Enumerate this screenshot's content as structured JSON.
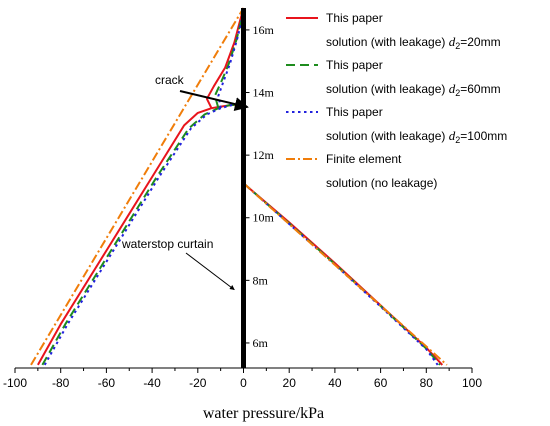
{
  "chart_data": {
    "type": "line",
    "xlabel": "water pressure/kPa",
    "ylabel": "",
    "xlim": [
      -100,
      100
    ],
    "ylim": [
      5.2,
      16.7
    ],
    "x_ticks": [
      -100,
      -80,
      -60,
      -40,
      -20,
      0,
      20,
      40,
      60,
      80,
      100
    ],
    "depth_labels": [
      "16m",
      "14m",
      "12m",
      "10m",
      "8m",
      "6m"
    ],
    "depth_values": [
      16,
      14,
      12,
      10,
      8,
      6
    ],
    "colors": {
      "d20": "#e8141c",
      "d60": "#1e8c1e",
      "d100": "#2222dd",
      "fem": "#f07d0a",
      "wall": "#000000"
    },
    "series": [
      {
        "name_line1": "This paper",
        "name_line2_prefix": "solution (with leakage) ",
        "name_var": "d",
        "name_sub": "2",
        "name_suffix": "=20mm",
        "color_key": "d20",
        "style": "solid",
        "left": [
          [
            -90,
            5.3
          ],
          [
            -80,
            6.6
          ],
          [
            -60,
            8.95
          ],
          [
            -40,
            11.3
          ],
          [
            -26,
            12.95
          ],
          [
            -20,
            13.35
          ],
          [
            -14,
            13.5
          ],
          [
            -10,
            13.55
          ],
          [
            -5,
            13.6
          ],
          [
            0,
            13.6
          ]
        ],
        "notch": [
          [
            -14,
            13.5
          ],
          [
            -16,
            13.8
          ],
          [
            -13,
            14.2
          ],
          [
            -8,
            14.8
          ],
          [
            -4,
            15.6
          ],
          [
            -1.5,
            16.3
          ],
          [
            0,
            16.7
          ]
        ],
        "right": [
          [
            0,
            11.1
          ],
          [
            20,
            9.85
          ],
          [
            40,
            8.55
          ],
          [
            60,
            7.2
          ],
          [
            80,
            5.85
          ],
          [
            87,
            5.3
          ]
        ]
      },
      {
        "name_line1": "This paper",
        "name_line2_prefix": "solution (with leakage) ",
        "name_var": "d",
        "name_sub": "2",
        "name_suffix": "=60mm",
        "color_key": "d60",
        "style": "dashed",
        "left": [
          [
            -88,
            5.3
          ],
          [
            -78,
            6.6
          ],
          [
            -58,
            8.95
          ],
          [
            -38,
            11.3
          ],
          [
            -24,
            12.85
          ],
          [
            -17,
            13.3
          ],
          [
            -11,
            13.5
          ],
          [
            -6,
            13.6
          ],
          [
            0,
            13.6
          ]
        ],
        "notch": [
          [
            -11,
            13.5
          ],
          [
            -12.5,
            13.9
          ],
          [
            -10,
            14.3
          ],
          [
            -6.5,
            14.9
          ],
          [
            -3,
            15.7
          ],
          [
            -1,
            16.3
          ],
          [
            0,
            16.7
          ]
        ],
        "right": [
          [
            0,
            11.1
          ],
          [
            20,
            9.82
          ],
          [
            40,
            8.52
          ],
          [
            60,
            7.18
          ],
          [
            80,
            5.82
          ],
          [
            86,
            5.3
          ]
        ]
      },
      {
        "name_line1": "This paper",
        "name_line2_prefix": "solution (with leakage) ",
        "name_var": "d",
        "name_sub": "2",
        "name_suffix": "=100mm",
        "color_key": "d100",
        "style": "dotted",
        "left": [
          [
            -87,
            5.3
          ],
          [
            -77,
            6.6
          ],
          [
            -57,
            8.95
          ],
          [
            -37,
            11.3
          ],
          [
            -23,
            12.85
          ],
          [
            -16,
            13.3
          ],
          [
            -10,
            13.5
          ],
          [
            -5,
            13.6
          ],
          [
            0,
            13.6
          ]
        ],
        "notch": [
          [
            -10,
            13.5
          ],
          [
            -11,
            13.9
          ],
          [
            -9,
            14.3
          ],
          [
            -6,
            14.9
          ],
          [
            -2.8,
            15.7
          ],
          [
            -0.8,
            16.3
          ],
          [
            0,
            16.7
          ]
        ],
        "right": [
          [
            0,
            11.1
          ],
          [
            20,
            9.8
          ],
          [
            40,
            8.5
          ],
          [
            60,
            7.16
          ],
          [
            80,
            5.8
          ],
          [
            85,
            5.3
          ]
        ]
      },
      {
        "name_line1": "Finite element",
        "name_line2_prefix": "solution (no leakage)",
        "name_var": "",
        "name_sub": "",
        "name_suffix": "",
        "color_key": "fem",
        "style": "dashdot",
        "left": [
          [
            -93,
            5.3
          ],
          [
            0,
            16.7
          ]
        ],
        "notch": [],
        "right": [
          [
            0,
            11.1
          ],
          [
            89,
            5.3
          ]
        ]
      }
    ],
    "annotations": [
      {
        "text": "crack",
        "target": [
          0,
          13.6
        ]
      },
      {
        "text": "waterstop curtain",
        "target": [
          -4,
          7.7
        ]
      }
    ],
    "grid": false,
    "legend_position": "top-right"
  }
}
